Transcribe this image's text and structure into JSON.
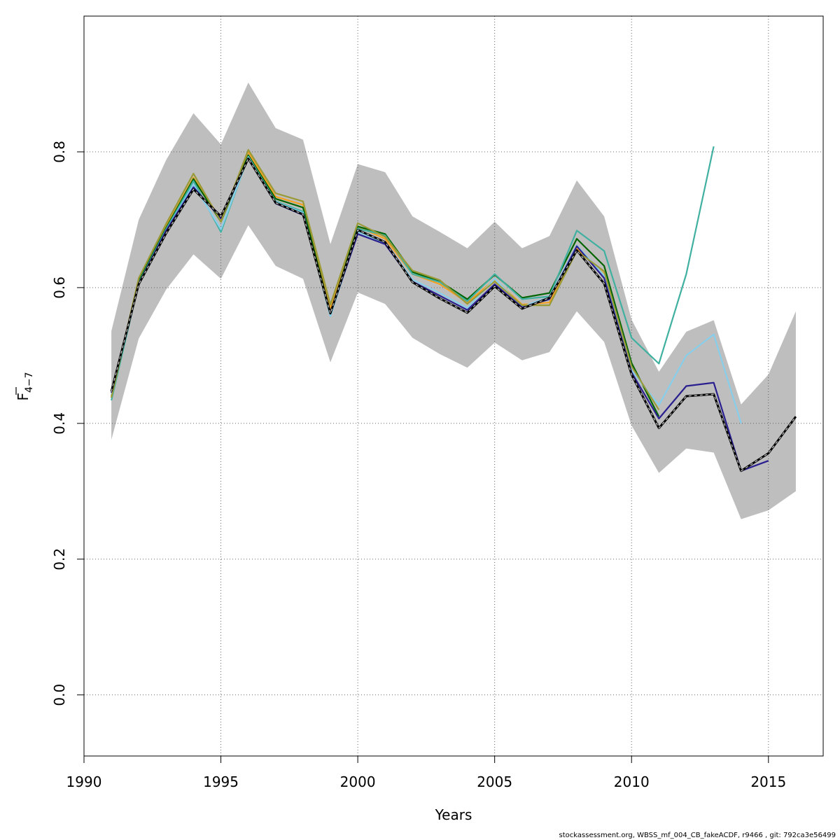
{
  "chart_data": {
    "type": "line",
    "xlabel": "Years",
    "ylabel": "F",
    "ylabel_sub": "4−7",
    "xlim": [
      1990,
      2017
    ],
    "ylim": [
      -0.09,
      1.0
    ],
    "x_ticks": [
      1990,
      1995,
      2000,
      2005,
      2010,
      2015
    ],
    "x_tick_labels": [
      "1990",
      "1995",
      "2000",
      "2005",
      "2010",
      "2015"
    ],
    "y_ticks": [
      0.0,
      0.2,
      0.4,
      0.6,
      0.8
    ],
    "y_tick_labels": [
      "0.0",
      "0.2",
      "0.4",
      "0.6",
      "0.8"
    ],
    "grid": true,
    "band": {
      "color": "#bebebe",
      "x": [
        1991,
        1992,
        1993,
        1994,
        1995,
        1996,
        1997,
        1998,
        1999,
        2000,
        2001,
        2002,
        2003,
        2004,
        2005,
        2006,
        2007,
        2008,
        2009,
        2010,
        2011,
        2012,
        2013,
        2014,
        2015,
        2016
      ],
      "upper": [
        0.536,
        0.7,
        0.788,
        0.857,
        0.811,
        0.902,
        0.835,
        0.818,
        0.664,
        0.782,
        0.77,
        0.705,
        0.682,
        0.658,
        0.697,
        0.658,
        0.676,
        0.758,
        0.705,
        0.553,
        0.476,
        0.535,
        0.552,
        0.428,
        0.472,
        0.565
      ],
      "lower": [
        0.376,
        0.525,
        0.597,
        0.649,
        0.613,
        0.692,
        0.632,
        0.613,
        0.49,
        0.593,
        0.576,
        0.526,
        0.502,
        0.482,
        0.519,
        0.493,
        0.505,
        0.565,
        0.52,
        0.397,
        0.327,
        0.363,
        0.357,
        0.259,
        0.272,
        0.3
      ]
    },
    "series": [
      {
        "color": "#f5a020",
        "x": [
          1991,
          1992,
          1993,
          1994,
          1995,
          1996,
          1997,
          1998,
          1999,
          2000,
          2001,
          2002,
          2003,
          2004,
          2005,
          2006,
          2007,
          2008,
          2009,
          2010
        ],
        "values": [
          0.441,
          0.612,
          0.69,
          0.762,
          0.7,
          0.8,
          0.734,
          0.722,
          0.57,
          0.69,
          0.672,
          0.62,
          0.605,
          0.578,
          0.612,
          0.575,
          0.578,
          0.658,
          0.62,
          0.485
        ]
      },
      {
        "color": "#006400",
        "x": [
          1991,
          1992,
          1993,
          1994,
          1995,
          1996,
          1997,
          1998,
          1999,
          2000,
          2001,
          2002,
          2003,
          2004,
          2005,
          2006,
          2007,
          2008,
          2009,
          2010,
          2011
        ],
        "values": [
          0.438,
          0.61,
          0.688,
          0.76,
          0.697,
          0.795,
          0.731,
          0.718,
          0.563,
          0.69,
          0.679,
          0.623,
          0.609,
          0.583,
          0.619,
          0.585,
          0.592,
          0.672,
          0.632,
          0.489,
          0.41
        ]
      },
      {
        "color": "#40b0a0",
        "x": [
          1991,
          1992,
          1993,
          1994,
          1995,
          1996,
          1997,
          1998,
          1999,
          2000,
          2001,
          2002,
          2003,
          2004,
          2005,
          2006,
          2007,
          2008,
          2009,
          2010,
          2011,
          2012,
          2013
        ],
        "values": [
          0.434,
          0.607,
          0.686,
          0.757,
          0.682,
          0.793,
          0.727,
          0.712,
          0.558,
          0.687,
          0.677,
          0.62,
          0.608,
          0.58,
          0.62,
          0.583,
          0.587,
          0.684,
          0.654,
          0.526,
          0.488,
          0.62,
          0.808
        ]
      },
      {
        "color": "#87ceeb",
        "x": [
          1991,
          1992,
          1993,
          1994,
          1995,
          1996,
          1997,
          1998,
          1999,
          2000,
          2001,
          2002,
          2003,
          2004,
          2005,
          2006,
          2007,
          2008,
          2009,
          2010,
          2011,
          2012,
          2013,
          2014
        ],
        "values": [
          0.442,
          0.606,
          0.684,
          0.752,
          0.686,
          0.792,
          0.726,
          0.71,
          0.558,
          0.682,
          0.666,
          0.612,
          0.592,
          0.57,
          0.613,
          0.572,
          0.586,
          0.662,
          0.618,
          0.478,
          0.427,
          0.5,
          0.531,
          0.4
        ]
      },
      {
        "color": "#2a1f8f",
        "x": [
          1991,
          1992,
          1993,
          1994,
          1995,
          1996,
          1997,
          1998,
          1999,
          2000,
          2001,
          2002,
          2003,
          2004,
          2005,
          2006,
          2007,
          2008,
          2009,
          2010,
          2011,
          2012,
          2013,
          2014,
          2015
        ],
        "values": [
          0.445,
          0.606,
          0.684,
          0.748,
          0.702,
          0.79,
          0.724,
          0.707,
          0.562,
          0.679,
          0.664,
          0.609,
          0.588,
          0.567,
          0.605,
          0.571,
          0.583,
          0.661,
          0.614,
          0.475,
          0.407,
          0.455,
          0.46,
          0.33,
          0.345
        ]
      },
      {
        "color": "#9a9a38",
        "x": [
          1991,
          1992,
          1993,
          1994,
          1995,
          1996,
          1997,
          1998,
          1999,
          2000,
          2001,
          2002,
          2003,
          2004,
          2005,
          2006,
          2007,
          2008,
          2009,
          2010,
          2011
        ],
        "values": [
          0.438,
          0.614,
          0.694,
          0.768,
          0.697,
          0.803,
          0.739,
          0.727,
          0.575,
          0.695,
          0.675,
          0.625,
          0.611,
          0.576,
          0.609,
          0.574,
          0.574,
          0.654,
          0.624,
          0.484,
          0.42
        ]
      }
    ],
    "reference": {
      "color": "#000000",
      "dash_color": "#cccccc",
      "x": [
        1991,
        1992,
        1993,
        1994,
        1995,
        1996,
        1997,
        1998,
        1999,
        2000,
        2001,
        2002,
        2003,
        2004,
        2005,
        2006,
        2007,
        2008,
        2009,
        2010,
        2011,
        2012,
        2013,
        2014,
        2015,
        2016
      ],
      "values": [
        0.447,
        0.605,
        0.68,
        0.745,
        0.705,
        0.79,
        0.725,
        0.708,
        0.562,
        0.685,
        0.667,
        0.608,
        0.584,
        0.563,
        0.602,
        0.569,
        0.585,
        0.655,
        0.606,
        0.472,
        0.393,
        0.44,
        0.443,
        0.33,
        0.356,
        0.41
      ]
    }
  },
  "footer": "stockassessment.org, WBSS_mf_004_CB_fakeACDF, r9466 , git: 792ca3e56499"
}
